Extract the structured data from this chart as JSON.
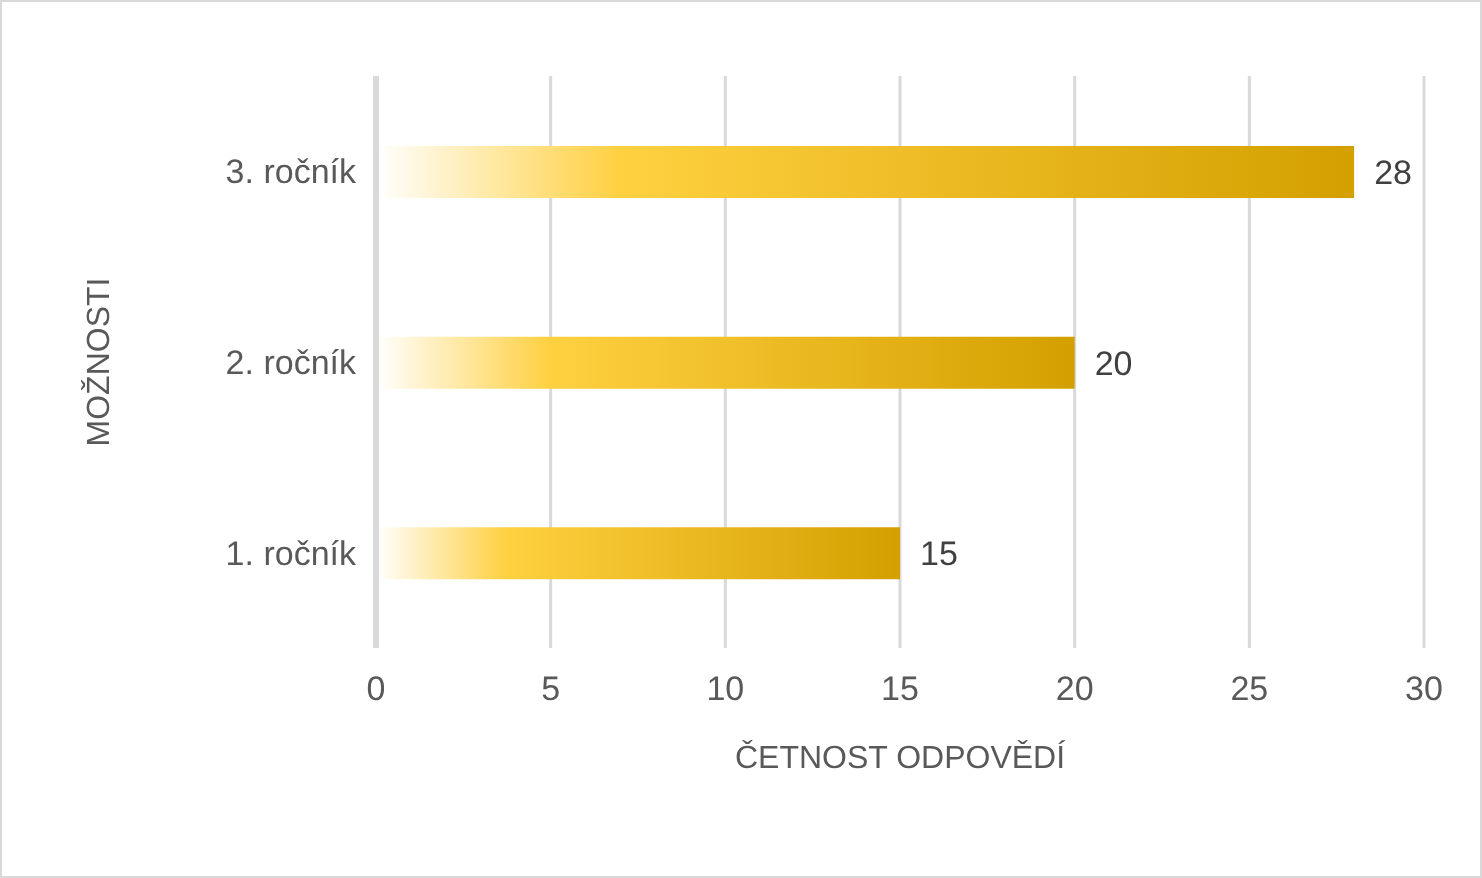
{
  "chart_data": {
    "type": "bar",
    "orientation": "horizontal",
    "categories": [
      "3. ročník",
      "2. ročník",
      "1. ročník"
    ],
    "values": [
      28,
      20,
      15
    ],
    "color": "#d4a000",
    "xlim": [
      0,
      30
    ],
    "xticks": [
      0,
      5,
      10,
      15,
      20,
      25,
      30
    ],
    "xlabel": "ČETNOST ODPOVĚDÍ",
    "ylabel": "MOŽNOSTI",
    "grid": "x",
    "data_labels": true,
    "legend": false
  }
}
